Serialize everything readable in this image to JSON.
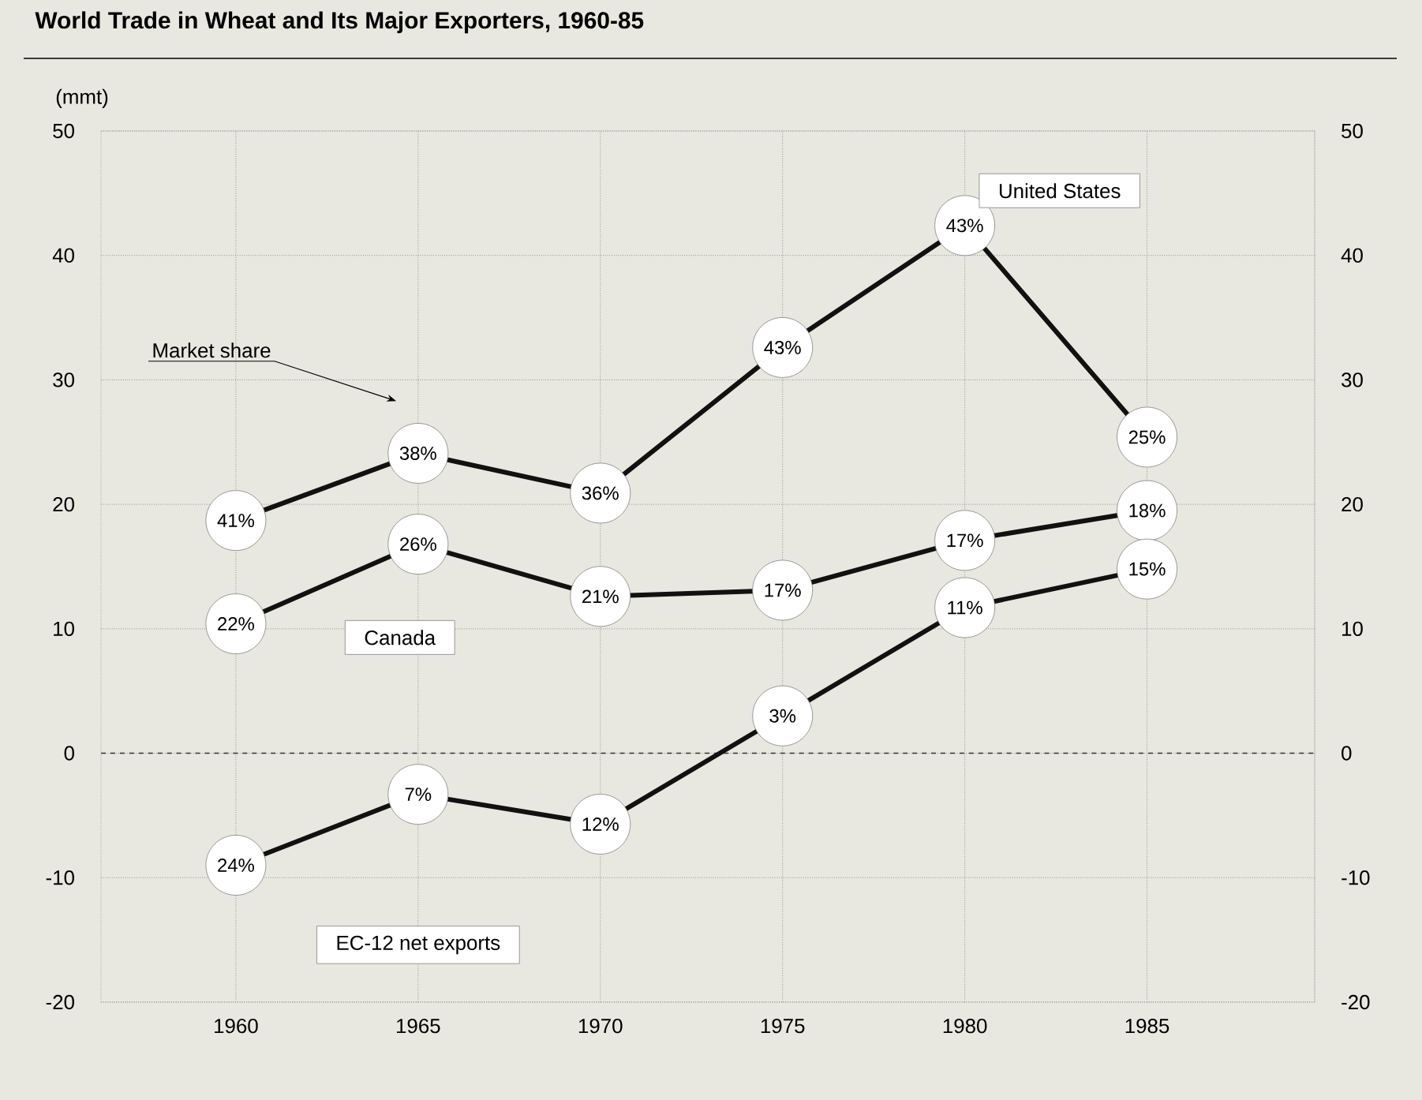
{
  "chart_data": {
    "type": "line",
    "title": "World Trade in Wheat and Its Major Exporters, 1960-85",
    "ylabel": "(mmt)",
    "x": [
      1960,
      1965,
      1970,
      1975,
      1980,
      1985
    ],
    "xlim": [
      1956.3,
      1989.6
    ],
    "xticks": [
      1960,
      1965,
      1970,
      1975,
      1980,
      1985
    ],
    "ylim": [
      -20,
      50
    ],
    "yticks": [
      -20,
      -10,
      0,
      10,
      20,
      30,
      40,
      50
    ],
    "y2lim": [
      -20,
      50
    ],
    "y2ticks": [
      -20,
      -10,
      0,
      10,
      20,
      30,
      40,
      50
    ],
    "series": [
      {
        "name": "United States",
        "color": "#111111",
        "values": [
          18.7,
          24.1,
          20.9,
          32.6,
          42.4,
          25.4
        ]
      },
      {
        "name": "Canada",
        "color": "#111111",
        "values": [
          10.4,
          16.8,
          12.6,
          13.1,
          17.1,
          19.5
        ]
      },
      {
        "name": "EC-12 net exports",
        "color": "#111111",
        "values": [
          -9.0,
          -3.3,
          -5.7,
          3.0,
          11.7,
          14.8
        ]
      }
    ],
    "ref_lines": [
      {
        "axis": "y",
        "value": 0,
        "color": "#333333",
        "line_style": "dashed"
      }
    ],
    "annotations": [
      "Market share",
      {
        "text": "41%",
        "x": 1960,
        "y": 18.7
      },
      {
        "text": "38%",
        "x": 1965,
        "y": 24.1
      },
      {
        "text": "36%",
        "x": 1970,
        "y": 20.9
      },
      {
        "text": "43%",
        "x": 1975,
        "y": 32.6
      },
      {
        "text": "43%",
        "x": 1980,
        "y": 42.4
      },
      {
        "text": "25%",
        "x": 1985,
        "y": 25.4
      },
      {
        "text": "22%",
        "x": 1960,
        "y": 10.4
      },
      {
        "text": "26%",
        "x": 1965,
        "y": 16.8
      },
      {
        "text": "21%",
        "x": 1970,
        "y": 12.6
      },
      {
        "text": "17%",
        "x": 1975,
        "y": 13.1
      },
      {
        "text": "17%",
        "x": 1980,
        "y": 17.1
      },
      {
        "text": "18%",
        "x": 1985,
        "y": 19.5
      },
      {
        "text": "24%",
        "x": 1960,
        "y": -9.0
      },
      {
        "text": "7%",
        "x": 1965,
        "y": -3.3
      },
      {
        "text": "12%",
        "x": 1970,
        "y": -5.7
      },
      {
        "text": "3%",
        "x": 1975,
        "y": 3.0
      },
      {
        "text": "11%",
        "x": 1980,
        "y": 11.7
      },
      {
        "text": "15%",
        "x": 1985,
        "y": 14.8
      }
    ],
    "grid": true,
    "marker": "circle",
    "line_style": "solid"
  }
}
